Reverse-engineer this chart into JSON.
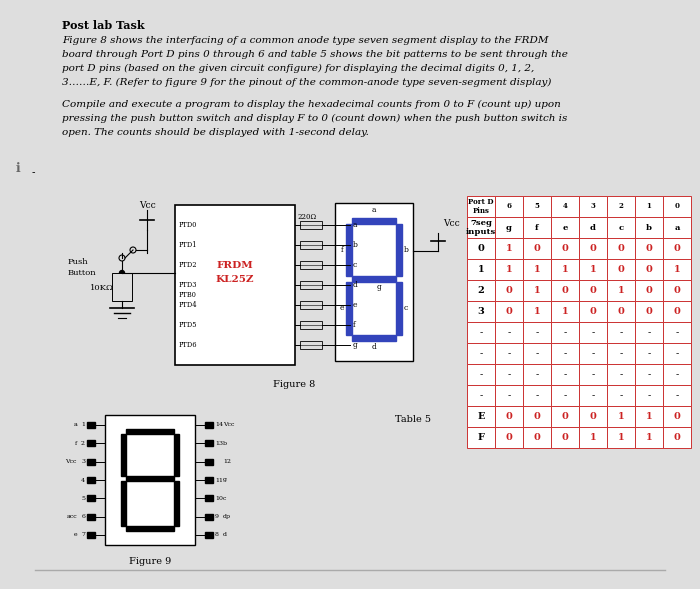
{
  "title": "Post lab Task",
  "para1_lines": [
    "Figure 8 shows the interfacing of a common anode type seven segment display to the FRDM",
    "board through Port D pins 0 through 6 and table 5 shows the bit patterns to be sent through the",
    "port D pins (based on the given circuit configure) for displaying the decimal digits 0, 1, 2,",
    "3……E, F. (Refer to figure 9 for the pinout of the common-anode type seven-segment display)"
  ],
  "para2_lines": [
    "Compile and execute a program to display the hexadecimal counts from 0 to F (count up) upon",
    "pressing the push button switch and display F to 0 (count down) when the push button switch is",
    "open. The counts should be displayed with 1-second delay."
  ],
  "table_header_row1": [
    "Port D\nPins",
    "6",
    "5",
    "4",
    "3",
    "2",
    "1",
    "0"
  ],
  "table_header_row2": [
    "7seg\ninputs",
    "g",
    "f",
    "e",
    "d",
    "c",
    "b",
    "a"
  ],
  "table_data": [
    [
      "0",
      "1",
      "0",
      "0",
      "0",
      "0",
      "0",
      "0"
    ],
    [
      "1",
      "1",
      "1",
      "1",
      "1",
      "0",
      "0",
      "1"
    ],
    [
      "2",
      "0",
      "1",
      "0",
      "0",
      "1",
      "0",
      "0"
    ],
    [
      "3",
      "0",
      "1",
      "1",
      "0",
      "0",
      "0",
      "0"
    ],
    [
      "-",
      "-",
      "-",
      "-",
      "-",
      "-",
      "-",
      "-"
    ],
    [
      "-",
      "-",
      "-",
      "-",
      "-",
      "-",
      "-",
      "-"
    ],
    [
      "-",
      "-",
      "-",
      "-",
      "-",
      "-",
      "-",
      "-"
    ],
    [
      "-",
      "-",
      "-",
      "-",
      "-",
      "-",
      "-",
      "-"
    ],
    [
      "E",
      "0",
      "0",
      "0",
      "0",
      "1",
      "1",
      "0"
    ],
    [
      "F",
      "0",
      "0",
      "0",
      "1",
      "1",
      "1",
      "0"
    ]
  ],
  "bg_color": "#dedede",
  "white": "#ffffff",
  "black": "#000000",
  "red": "#cc2222",
  "blue_seg": "#3344bb",
  "table_border": "#cc3333"
}
